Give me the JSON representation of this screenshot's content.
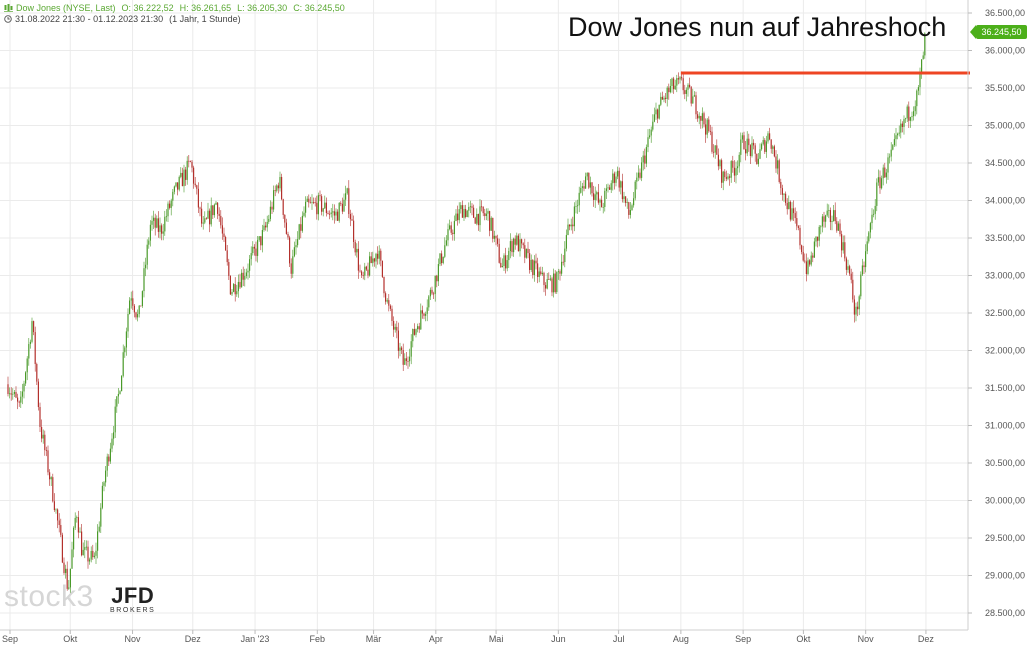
{
  "header": {
    "line1": [
      "Dow Jones (NYSE, Last)",
      "O: 36.222,52",
      "H: 36.261,65",
      "L: 36.205,30",
      "C: 36.245,50"
    ],
    "line2": [
      "31.08.2022 21:30 - 01.12.2023 21:30",
      "(1 Jahr, 1 Stunde)"
    ],
    "line1_icon": "candle-chart-icon",
    "line2_icon": "clock-icon"
  },
  "watermark": {
    "text": "stock3"
  },
  "broker_logo": {
    "name": "JFD",
    "sub": "BROKERS"
  },
  "colors": {
    "up": "#4a9a2a",
    "down": "#b3302c",
    "resistance": "#ee4523",
    "grid": "#ebebeb",
    "badge": "#4caf1a"
  },
  "chart_data": {
    "type": "candlestick",
    "title": "Dow Jones nun auf  Jahreshoch",
    "current_price_label": "36.245,50",
    "current_price": 36245.5,
    "ylim": [
      28300,
      36650
    ],
    "y_ticks": [
      28500,
      29000,
      29500,
      30000,
      30500,
      31000,
      31500,
      32000,
      32500,
      33000,
      33500,
      34000,
      34500,
      35000,
      35500,
      36000,
      36500
    ],
    "y_tick_labels": [
      "28.500,00",
      "29.000,00",
      "29.500,00",
      "30.000,00",
      "30.500,00",
      "31.000,00",
      "31.500,00",
      "32.000,00",
      "32.500,00",
      "33.000,00",
      "33.500,00",
      "34.000,00",
      "34.500,00",
      "35.000,00",
      "35.500,00",
      "36.000,00",
      "36.500,00"
    ],
    "x_range": [
      "2022-08-31",
      "2023-12-11"
    ],
    "x_ticks": [
      {
        "date": "2022-09-01",
        "label": "Sep"
      },
      {
        "date": "2022-10-01",
        "label": "Okt"
      },
      {
        "date": "2022-11-01",
        "label": "Nov"
      },
      {
        "date": "2022-12-01",
        "label": "Dez"
      },
      {
        "date": "2023-01-01",
        "label": "Jan '23"
      },
      {
        "date": "2023-02-01",
        "label": "Feb"
      },
      {
        "date": "2023-03-01",
        "label": "Mär"
      },
      {
        "date": "2023-04-01",
        "label": "Apr"
      },
      {
        "date": "2023-05-01",
        "label": "Mai"
      },
      {
        "date": "2023-06-01",
        "label": "Jun"
      },
      {
        "date": "2023-07-01",
        "label": "Jul"
      },
      {
        "date": "2023-08-01",
        "label": "Aug"
      },
      {
        "date": "2023-09-01",
        "label": "Sep"
      },
      {
        "date": "2023-10-01",
        "label": "Okt"
      },
      {
        "date": "2023-11-01",
        "label": "Nov"
      },
      {
        "date": "2023-12-01",
        "label": "Dez"
      }
    ],
    "price_path": [
      [
        "2022-08-31",
        31550
      ],
      [
        "2022-09-06",
        31200
      ],
      [
        "2022-09-12",
        32400
      ],
      [
        "2022-09-16",
        31000
      ],
      [
        "2022-09-23",
        30000
      ],
      [
        "2022-09-30",
        28800
      ],
      [
        "2022-10-04",
        29900
      ],
      [
        "2022-10-07",
        29300
      ],
      [
        "2022-10-13",
        29200
      ],
      [
        "2022-10-18",
        30300
      ],
      [
        "2022-10-25",
        31400
      ],
      [
        "2022-10-31",
        32800
      ],
      [
        "2022-11-04",
        32400
      ],
      [
        "2022-11-10",
        33700
      ],
      [
        "2022-11-15",
        33600
      ],
      [
        "2022-11-22",
        34100
      ],
      [
        "2022-11-30",
        34500
      ],
      [
        "2022-12-06",
        33600
      ],
      [
        "2022-12-13",
        34000
      ],
      [
        "2022-12-20",
        32800
      ],
      [
        "2022-12-28",
        33100
      ],
      [
        "2023-01-06",
        33600
      ],
      [
        "2023-01-13",
        34300
      ],
      [
        "2023-01-19",
        33100
      ],
      [
        "2023-01-26",
        33900
      ],
      [
        "2023-02-02",
        33950
      ],
      [
        "2023-02-10",
        33800
      ],
      [
        "2023-02-16",
        34050
      ],
      [
        "2023-02-23",
        32900
      ],
      [
        "2023-03-03",
        33350
      ],
      [
        "2023-03-08",
        32600
      ],
      [
        "2023-03-13",
        32100
      ],
      [
        "2023-03-16",
        31800
      ],
      [
        "2023-03-22",
        32300
      ],
      [
        "2023-03-30",
        32800
      ],
      [
        "2023-04-06",
        33450
      ],
      [
        "2023-04-14",
        33900
      ],
      [
        "2023-04-20",
        33800
      ],
      [
        "2023-04-27",
        33800
      ],
      [
        "2023-05-04",
        33100
      ],
      [
        "2023-05-10",
        33500
      ],
      [
        "2023-05-17",
        33200
      ],
      [
        "2023-05-25",
        32900
      ],
      [
        "2023-05-31",
        32900
      ],
      [
        "2023-06-06",
        33600
      ],
      [
        "2023-06-15",
        34350
      ],
      [
        "2023-06-22",
        33900
      ],
      [
        "2023-06-30",
        34400
      ],
      [
        "2023-07-06",
        33800
      ],
      [
        "2023-07-13",
        34500
      ],
      [
        "2023-07-20",
        35200
      ],
      [
        "2023-07-27",
        35500
      ],
      [
        "2023-08-01",
        35550
      ],
      [
        "2023-08-08",
        35300
      ],
      [
        "2023-08-15",
        34900
      ],
      [
        "2023-08-22",
        34300
      ],
      [
        "2023-08-28",
        34450
      ],
      [
        "2023-09-01",
        34800
      ],
      [
        "2023-09-08",
        34550
      ],
      [
        "2023-09-14",
        34900
      ],
      [
        "2023-09-21",
        34100
      ],
      [
        "2023-09-28",
        33600
      ],
      [
        "2023-10-03",
        33050
      ],
      [
        "2023-10-10",
        33700
      ],
      [
        "2023-10-17",
        33800
      ],
      [
        "2023-10-24",
        33000
      ],
      [
        "2023-10-27",
        32450
      ],
      [
        "2023-11-01",
        33300
      ],
      [
        "2023-11-07",
        34200
      ],
      [
        "2023-11-14",
        34600
      ],
      [
        "2023-11-21",
        35100
      ],
      [
        "2023-11-27",
        35400
      ],
      [
        "2023-12-01",
        36245
      ]
    ],
    "resistance_line": {
      "value": 35700,
      "from": "2023-08-01",
      "to": "2023-12-11"
    }
  }
}
